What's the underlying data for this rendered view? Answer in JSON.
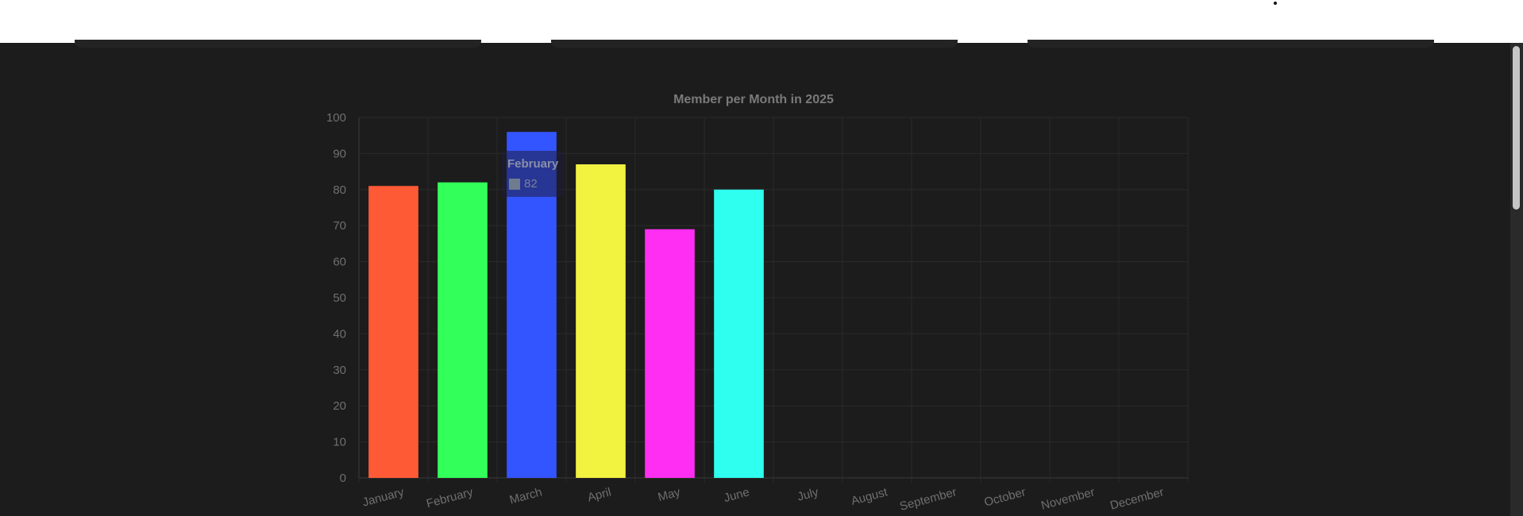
{
  "chart_data": {
    "type": "bar",
    "title": "Member per Month in 2025",
    "categories": [
      "January",
      "February",
      "March",
      "April",
      "May",
      "June",
      "July",
      "August",
      "September",
      "October",
      "November",
      "December"
    ],
    "values": [
      81,
      82,
      96,
      87,
      69,
      80,
      null,
      null,
      null,
      null,
      null,
      null
    ],
    "colors": [
      "#ff5a36",
      "#32ff5a",
      "#3355ff",
      "#f2f241",
      "#ff2ef2",
      "#2effee"
    ],
    "ylim": [
      0,
      100
    ],
    "yticks": [
      0,
      10,
      20,
      30,
      40,
      50,
      60,
      70,
      80,
      90,
      100
    ],
    "grid": true,
    "tooltip": {
      "label": "February",
      "value": "82"
    }
  },
  "colors": {
    "background": "#1c1c1c",
    "grid": "#2a2a2a",
    "text": "#6f6f6f",
    "title": "#7a7a7a"
  }
}
